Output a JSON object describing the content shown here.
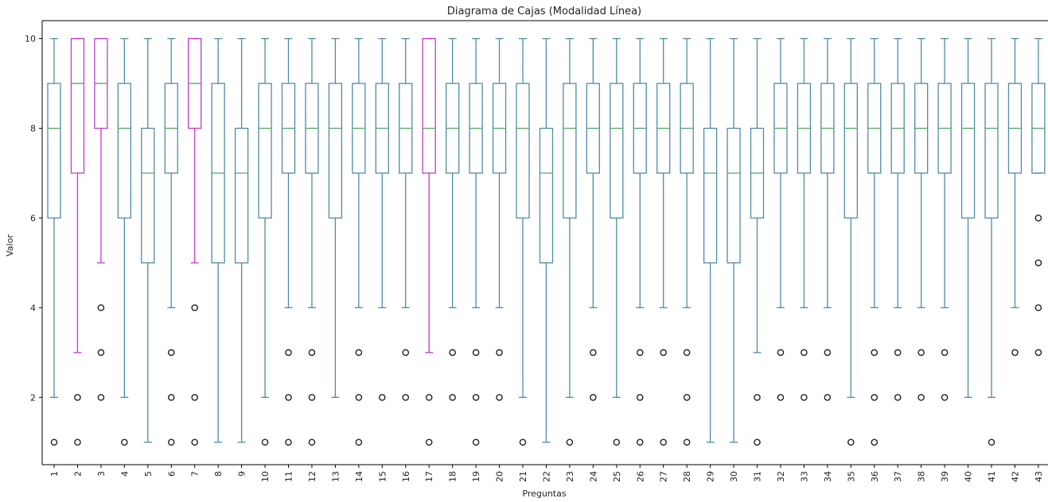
{
  "chart_data": {
    "type": "box",
    "title": "Diagrama de Cajas (Modalidad Línea)",
    "xlabel": "Preguntas",
    "ylabel": "Valor",
    "ylim": [
      0.5,
      10.4
    ],
    "yticks": [
      2,
      4,
      6,
      8,
      10
    ],
    "grid": false,
    "colors": {
      "box": "#4f8ba8",
      "highlight": "#c03cc8",
      "median": "#4fa860",
      "outlier": "#222222"
    },
    "boxes": [
      {
        "label": "1",
        "q1": 6,
        "median": 8,
        "q3": 9,
        "whisker_low": 2,
        "whisker_high": 10,
        "outliers": [
          1
        ],
        "highlight": false
      },
      {
        "label": "2",
        "q1": 7,
        "median": 9,
        "q3": 10,
        "whisker_low": 3,
        "whisker_high": 10,
        "outliers": [
          2,
          1
        ],
        "highlight": true
      },
      {
        "label": "3",
        "q1": 8,
        "median": 9,
        "q3": 10,
        "whisker_low": 5,
        "whisker_high": 10,
        "outliers": [
          4,
          3,
          2
        ],
        "highlight": true
      },
      {
        "label": "4",
        "q1": 6,
        "median": 8,
        "q3": 9,
        "whisker_low": 2,
        "whisker_high": 10,
        "outliers": [
          1
        ],
        "highlight": false
      },
      {
        "label": "5",
        "q1": 5,
        "median": 7,
        "q3": 8,
        "whisker_low": 1,
        "whisker_high": 10,
        "outliers": [],
        "highlight": false
      },
      {
        "label": "6",
        "q1": 7,
        "median": 8,
        "q3": 9,
        "whisker_low": 4,
        "whisker_high": 10,
        "outliers": [
          3,
          2,
          1
        ],
        "highlight": false
      },
      {
        "label": "7",
        "q1": 8,
        "median": 9,
        "q3": 10,
        "whisker_low": 5,
        "whisker_high": 10,
        "outliers": [
          4,
          2,
          1
        ],
        "highlight": true
      },
      {
        "label": "8",
        "q1": 5,
        "median": 7,
        "q3": 9,
        "whisker_low": 1,
        "whisker_high": 10,
        "outliers": [],
        "highlight": false
      },
      {
        "label": "9",
        "q1": 5,
        "median": 7,
        "q3": 8,
        "whisker_low": 1,
        "whisker_high": 10,
        "outliers": [],
        "highlight": false
      },
      {
        "label": "10",
        "q1": 6,
        "median": 8,
        "q3": 9,
        "whisker_low": 2,
        "whisker_high": 10,
        "outliers": [
          1
        ],
        "highlight": false
      },
      {
        "label": "11",
        "q1": 7,
        "median": 8,
        "q3": 9,
        "whisker_low": 4,
        "whisker_high": 10,
        "outliers": [
          3,
          2,
          1
        ],
        "highlight": false
      },
      {
        "label": "12",
        "q1": 7,
        "median": 8,
        "q3": 9,
        "whisker_low": 4,
        "whisker_high": 10,
        "outliers": [
          3,
          2,
          1
        ],
        "highlight": false
      },
      {
        "label": "13",
        "q1": 6,
        "median": 8,
        "q3": 9,
        "whisker_low": 2,
        "whisker_high": 10,
        "outliers": [],
        "highlight": false
      },
      {
        "label": "14",
        "q1": 7,
        "median": 8,
        "q3": 9,
        "whisker_low": 4,
        "whisker_high": 10,
        "outliers": [
          3,
          2,
          1
        ],
        "highlight": false
      },
      {
        "label": "15",
        "q1": 7,
        "median": 8,
        "q3": 9,
        "whisker_low": 4,
        "whisker_high": 10,
        "outliers": [
          2
        ],
        "highlight": false
      },
      {
        "label": "16",
        "q1": 7,
        "median": 8,
        "q3": 9,
        "whisker_low": 4,
        "whisker_high": 10,
        "outliers": [
          3,
          2
        ],
        "highlight": false
      },
      {
        "label": "17",
        "q1": 7,
        "median": 8,
        "q3": 10,
        "whisker_low": 3,
        "whisker_high": 10,
        "outliers": [
          2,
          1
        ],
        "highlight": true
      },
      {
        "label": "18",
        "q1": 7,
        "median": 8,
        "q3": 9,
        "whisker_low": 4,
        "whisker_high": 10,
        "outliers": [
          3,
          2
        ],
        "highlight": false
      },
      {
        "label": "19",
        "q1": 7,
        "median": 8,
        "q3": 9,
        "whisker_low": 4,
        "whisker_high": 10,
        "outliers": [
          3,
          2,
          1
        ],
        "highlight": false
      },
      {
        "label": "20",
        "q1": 7,
        "median": 8,
        "q3": 9,
        "whisker_low": 4,
        "whisker_high": 10,
        "outliers": [
          3,
          2
        ],
        "highlight": false
      },
      {
        "label": "21",
        "q1": 6,
        "median": 8,
        "q3": 9,
        "whisker_low": 2,
        "whisker_high": 10,
        "outliers": [
          1
        ],
        "highlight": false
      },
      {
        "label": "22",
        "q1": 5,
        "median": 7,
        "q3": 8,
        "whisker_low": 1,
        "whisker_high": 10,
        "outliers": [],
        "highlight": false
      },
      {
        "label": "23",
        "q1": 6,
        "median": 8,
        "q3": 9,
        "whisker_low": 2,
        "whisker_high": 10,
        "outliers": [
          1
        ],
        "highlight": false
      },
      {
        "label": "24",
        "q1": 7,
        "median": 8,
        "q3": 9,
        "whisker_low": 4,
        "whisker_high": 10,
        "outliers": [
          3,
          2
        ],
        "highlight": false
      },
      {
        "label": "25",
        "q1": 6,
        "median": 8,
        "q3": 9,
        "whisker_low": 2,
        "whisker_high": 10,
        "outliers": [
          1
        ],
        "highlight": false
      },
      {
        "label": "26",
        "q1": 7,
        "median": 8,
        "q3": 9,
        "whisker_low": 4,
        "whisker_high": 10,
        "outliers": [
          3,
          2,
          1
        ],
        "highlight": false
      },
      {
        "label": "27",
        "q1": 7,
        "median": 8,
        "q3": 9,
        "whisker_low": 4,
        "whisker_high": 10,
        "outliers": [
          3,
          1
        ],
        "highlight": false
      },
      {
        "label": "28",
        "q1": 7,
        "median": 8,
        "q3": 9,
        "whisker_low": 4,
        "whisker_high": 10,
        "outliers": [
          3,
          2,
          1
        ],
        "highlight": false
      },
      {
        "label": "29",
        "q1": 5,
        "median": 7,
        "q3": 8,
        "whisker_low": 1,
        "whisker_high": 10,
        "outliers": [],
        "highlight": false
      },
      {
        "label": "30",
        "q1": 5,
        "median": 7,
        "q3": 8,
        "whisker_low": 1,
        "whisker_high": 10,
        "outliers": [],
        "highlight": false
      },
      {
        "label": "31",
        "q1": 6,
        "median": 7,
        "q3": 8,
        "whisker_low": 3,
        "whisker_high": 10,
        "outliers": [
          2,
          1
        ],
        "highlight": false
      },
      {
        "label": "32",
        "q1": 7,
        "median": 8,
        "q3": 9,
        "whisker_low": 4,
        "whisker_high": 10,
        "outliers": [
          3,
          2
        ],
        "highlight": false
      },
      {
        "label": "33",
        "q1": 7,
        "median": 8,
        "q3": 9,
        "whisker_low": 4,
        "whisker_high": 10,
        "outliers": [
          3,
          2
        ],
        "highlight": false
      },
      {
        "label": "34",
        "q1": 7,
        "median": 8,
        "q3": 9,
        "whisker_low": 4,
        "whisker_high": 10,
        "outliers": [
          3,
          2
        ],
        "highlight": false
      },
      {
        "label": "35",
        "q1": 6,
        "median": 8,
        "q3": 9,
        "whisker_low": 2,
        "whisker_high": 10,
        "outliers": [
          1
        ],
        "highlight": false
      },
      {
        "label": "36",
        "q1": 7,
        "median": 8,
        "q3": 9,
        "whisker_low": 4,
        "whisker_high": 10,
        "outliers": [
          3,
          2,
          1
        ],
        "highlight": false
      },
      {
        "label": "37",
        "q1": 7,
        "median": 8,
        "q3": 9,
        "whisker_low": 4,
        "whisker_high": 10,
        "outliers": [
          3,
          2
        ],
        "highlight": false
      },
      {
        "label": "38",
        "q1": 7,
        "median": 8,
        "q3": 9,
        "whisker_low": 4,
        "whisker_high": 10,
        "outliers": [
          3,
          2
        ],
        "highlight": false
      },
      {
        "label": "39",
        "q1": 7,
        "median": 8,
        "q3": 9,
        "whisker_low": 4,
        "whisker_high": 10,
        "outliers": [
          3,
          2
        ],
        "highlight": false
      },
      {
        "label": "40",
        "q1": 6,
        "median": 8,
        "q3": 9,
        "whisker_low": 2,
        "whisker_high": 10,
        "outliers": [],
        "highlight": false
      },
      {
        "label": "41",
        "q1": 6,
        "median": 8,
        "q3": 9,
        "whisker_low": 2,
        "whisker_high": 10,
        "outliers": [
          1
        ],
        "highlight": false
      },
      {
        "label": "42",
        "q1": 7,
        "median": 8,
        "q3": 9,
        "whisker_low": 4,
        "whisker_high": 10,
        "outliers": [
          3
        ],
        "highlight": false
      },
      {
        "label": "43",
        "q1": 7,
        "median": 8,
        "q3": 9,
        "whisker_low": 7,
        "whisker_high": 10,
        "outliers": [
          6,
          5,
          4,
          3
        ],
        "highlight": false
      }
    ]
  }
}
